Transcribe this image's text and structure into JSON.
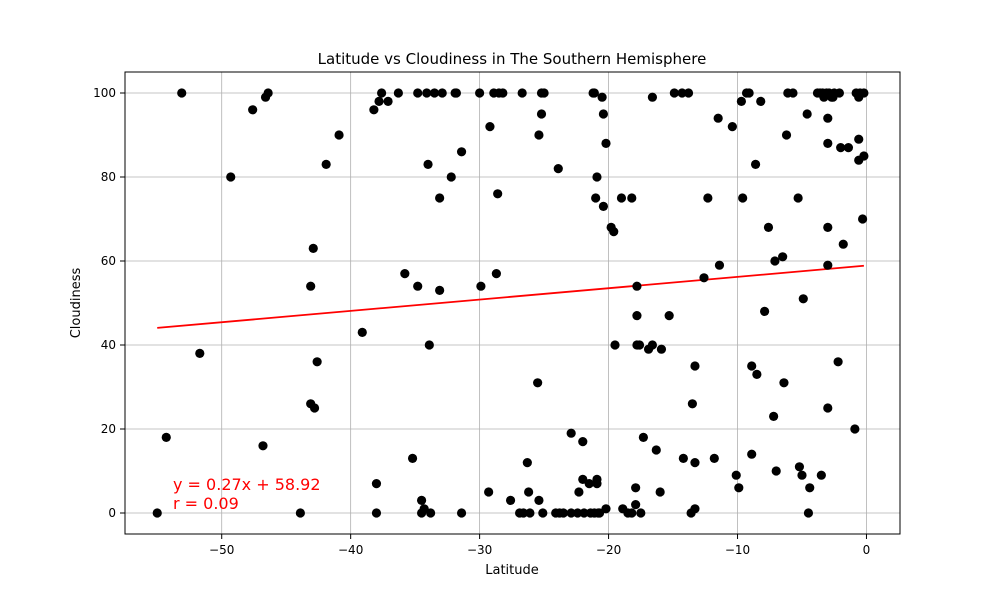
{
  "chart_data": {
    "type": "scatter",
    "title": "Latitude vs Cloudiness in The Southern Hemisphere",
    "xlabel": "Latitude",
    "ylabel": "Cloudiness",
    "xlim": [
      -57.5,
      2.6
    ],
    "ylim": [
      -5,
      105
    ],
    "xticks": [
      -50,
      -40,
      -30,
      -20,
      -10,
      0
    ],
    "yticks": [
      0,
      20,
      40,
      60,
      80,
      100
    ],
    "xtick_labels": [
      "−50",
      "−40",
      "−30",
      "−20",
      "−10",
      "0"
    ],
    "ytick_labels": [
      "0",
      "20",
      "40",
      "60",
      "80",
      "100"
    ],
    "grid": true,
    "marker_color": "#000000",
    "series": [
      {
        "points": [
          [
            -55,
            0
          ],
          [
            -54.3,
            18
          ],
          [
            -53.1,
            100
          ],
          [
            -51.7,
            38
          ],
          [
            -49.3,
            80
          ],
          [
            -47.6,
            96
          ],
          [
            -46.8,
            16
          ],
          [
            -46.6,
            99
          ],
          [
            -46.4,
            100
          ],
          [
            -43.9,
            0
          ],
          [
            -43.1,
            54
          ],
          [
            -43.1,
            26
          ],
          [
            -42.9,
            63
          ],
          [
            -42.8,
            25
          ],
          [
            -42.6,
            36
          ],
          [
            -41.9,
            83
          ],
          [
            -40.9,
            90
          ],
          [
            -39.1,
            43
          ],
          [
            -38.2,
            96
          ],
          [
            -38,
            7
          ],
          [
            -38,
            0
          ],
          [
            -37.8,
            98
          ],
          [
            -37.6,
            100
          ],
          [
            -37.1,
            98
          ],
          [
            -36.3,
            100
          ],
          [
            -35.8,
            57
          ],
          [
            -35.2,
            13
          ],
          [
            -34.8,
            54
          ],
          [
            -34.8,
            100
          ],
          [
            -34.5,
            0
          ],
          [
            -34.5,
            3
          ],
          [
            -34.3,
            1
          ],
          [
            -34.1,
            100
          ],
          [
            -34,
            83
          ],
          [
            -33.9,
            40
          ],
          [
            -33.8,
            0
          ],
          [
            -33.5,
            100
          ],
          [
            -33.1,
            53
          ],
          [
            -33.1,
            75
          ],
          [
            -32.9,
            100
          ],
          [
            -32.2,
            80
          ],
          [
            -31.9,
            100
          ],
          [
            -31.8,
            100
          ],
          [
            -31.4,
            86
          ],
          [
            -31.4,
            0
          ],
          [
            -30,
            100
          ],
          [
            -29.9,
            54
          ],
          [
            -29.3,
            5
          ],
          [
            -29.2,
            92
          ],
          [
            -28.9,
            100
          ],
          [
            -28.7,
            57
          ],
          [
            -28.6,
            76
          ],
          [
            -28.5,
            100
          ],
          [
            -28.2,
            100
          ],
          [
            -27.6,
            3
          ],
          [
            -26.9,
            0
          ],
          [
            -26.7,
            100
          ],
          [
            -26.6,
            0
          ],
          [
            -26.3,
            12
          ],
          [
            -26.2,
            5
          ],
          [
            -26.1,
            0
          ],
          [
            -25.5,
            31
          ],
          [
            -25.4,
            3
          ],
          [
            -25.4,
            90
          ],
          [
            -25.2,
            95
          ],
          [
            -25.2,
            100
          ],
          [
            -25.1,
            0
          ],
          [
            -25,
            100
          ],
          [
            -24.1,
            0
          ],
          [
            -23.9,
            82
          ],
          [
            -23.8,
            0
          ],
          [
            -23.5,
            0
          ],
          [
            -22.9,
            19
          ],
          [
            -22.9,
            0
          ],
          [
            -22.4,
            0
          ],
          [
            -22.3,
            5
          ],
          [
            -22,
            17
          ],
          [
            -22,
            8
          ],
          [
            -21.9,
            0
          ],
          [
            -21.5,
            7
          ],
          [
            -21.4,
            0
          ],
          [
            -21.2,
            100
          ],
          [
            -21.1,
            100
          ],
          [
            -21.1,
            0
          ],
          [
            -21,
            75
          ],
          [
            -20.9,
            80
          ],
          [
            -20.9,
            8
          ],
          [
            -20.9,
            7
          ],
          [
            -20.8,
            0
          ],
          [
            -20.7,
            0
          ],
          [
            -20.5,
            99
          ],
          [
            -20.4,
            95
          ],
          [
            -20.4,
            73
          ],
          [
            -20.2,
            88
          ],
          [
            -20.2,
            1
          ],
          [
            -19.8,
            68
          ],
          [
            -19.6,
            67
          ],
          [
            -19.5,
            40
          ],
          [
            -19,
            75
          ],
          [
            -18.9,
            1
          ],
          [
            -18.5,
            0
          ],
          [
            -18.2,
            75
          ],
          [
            -18.2,
            0
          ],
          [
            -17.9,
            6
          ],
          [
            -17.9,
            2
          ],
          [
            -17.8,
            54
          ],
          [
            -17.8,
            47
          ],
          [
            -17.8,
            40
          ],
          [
            -17.6,
            40
          ],
          [
            -17.5,
            0
          ],
          [
            -17.3,
            18
          ],
          [
            -16.9,
            39
          ],
          [
            -16.6,
            99
          ],
          [
            -16.6,
            40
          ],
          [
            -16.3,
            15
          ],
          [
            -16,
            5
          ],
          [
            -15.9,
            39
          ],
          [
            -15.3,
            47
          ],
          [
            -14.9,
            100
          ],
          [
            -14.3,
            100
          ],
          [
            -14.2,
            13
          ],
          [
            -13.8,
            100
          ],
          [
            -13.6,
            0
          ],
          [
            -13.5,
            26
          ],
          [
            -13.3,
            1
          ],
          [
            -13.3,
            35
          ],
          [
            -13.3,
            12
          ],
          [
            -12.6,
            56
          ],
          [
            -12.3,
            75
          ],
          [
            -11.8,
            13
          ],
          [
            -11.5,
            94
          ],
          [
            -11.4,
            59
          ],
          [
            -10.4,
            92
          ],
          [
            -10.1,
            9
          ],
          [
            -9.9,
            6
          ],
          [
            -9.7,
            98
          ],
          [
            -9.6,
            75
          ],
          [
            -9.3,
            100
          ],
          [
            -9.1,
            100
          ],
          [
            -8.9,
            14
          ],
          [
            -8.9,
            35
          ],
          [
            -8.6,
            83
          ],
          [
            -8.5,
            33
          ],
          [
            -8.2,
            98
          ],
          [
            -7.9,
            48
          ],
          [
            -7.6,
            68
          ],
          [
            -7.2,
            23
          ],
          [
            -7.1,
            60
          ],
          [
            -7,
            10
          ],
          [
            -6.5,
            61
          ],
          [
            -6.4,
            31
          ],
          [
            -6.2,
            90
          ],
          [
            -6.1,
            100
          ],
          [
            -5.7,
            100
          ],
          [
            -5.3,
            75
          ],
          [
            -5.2,
            11
          ],
          [
            -5,
            9
          ],
          [
            -4.9,
            51
          ],
          [
            -4.6,
            95
          ],
          [
            -4.5,
            0
          ],
          [
            -4.4,
            6
          ],
          [
            -3.8,
            100
          ],
          [
            -3.6,
            100
          ],
          [
            -3.5,
            9
          ],
          [
            -3.4,
            100
          ],
          [
            -3.3,
            99
          ],
          [
            -3.1,
            100
          ],
          [
            -3,
            94
          ],
          [
            -3,
            88
          ],
          [
            -3,
            68
          ],
          [
            -3,
            59
          ],
          [
            -3,
            25
          ],
          [
            -2.9,
            100
          ],
          [
            -2.7,
            99
          ],
          [
            -2.6,
            99
          ],
          [
            -2.5,
            100
          ],
          [
            -2.2,
            36
          ],
          [
            -2.1,
            100
          ],
          [
            -2,
            87
          ],
          [
            -1.8,
            64
          ],
          [
            -1.4,
            87
          ],
          [
            -0.9,
            20
          ],
          [
            -0.8,
            100
          ],
          [
            -0.6,
            89
          ],
          [
            -0.6,
            84
          ],
          [
            -0.6,
            99
          ],
          [
            -0.5,
            100
          ],
          [
            -0.3,
            70
          ],
          [
            -0.2,
            85
          ],
          [
            -0.2,
            100
          ]
        ]
      }
    ],
    "regression": {
      "slope": 0.27,
      "intercept": 58.92,
      "x_range": [
        -55,
        -0.2
      ],
      "color": "#ff0000",
      "equation_label": "y = 0.27x + 58.92",
      "r_label": "r = 0.09"
    }
  }
}
